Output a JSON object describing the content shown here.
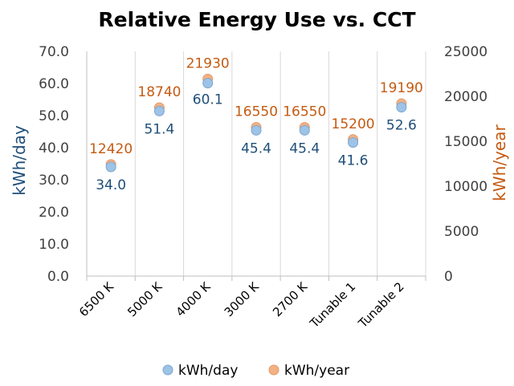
{
  "chart_data": {
    "type": "scatter",
    "title": "Relative Energy Use vs. CCT",
    "categories": [
      "6500 K",
      "5000 K",
      "4000 K",
      "3000 K",
      "2700 K",
      "Tunable 1",
      "Tunable 2"
    ],
    "y_left": {
      "label": "kWh/day",
      "ylim": [
        0,
        70
      ],
      "ticks": [
        "0.0",
        "10.0",
        "20.0",
        "30.0",
        "40.0",
        "50.0",
        "60.0",
        "70.0"
      ]
    },
    "y_right": {
      "label": "kWh/year",
      "ylim": [
        0,
        25000
      ],
      "ticks": [
        "0",
        "5000",
        "10000",
        "15000",
        "20000",
        "25000"
      ]
    },
    "series": [
      {
        "name": "kWh/day",
        "axis": "left",
        "color": "#9DC3E6",
        "label_color": "#1F4E79",
        "values": [
          34.0,
          51.4,
          60.1,
          45.4,
          45.4,
          41.6,
          52.6
        ],
        "labels": [
          "34.0",
          "51.4",
          "60.1",
          "45.4",
          "45.4",
          "41.6",
          "52.6"
        ]
      },
      {
        "name": "kWh/year",
        "axis": "right",
        "color": "#F4B183",
        "label_color": "#C55A11",
        "values": [
          12420,
          18740,
          21930,
          16550,
          16550,
          15200,
          19190
        ],
        "labels": [
          "12420",
          "18740",
          "21930",
          "16550",
          "16550",
          "15200",
          "19190"
        ]
      }
    ],
    "grid": "vertical",
    "legend": "bottom"
  }
}
